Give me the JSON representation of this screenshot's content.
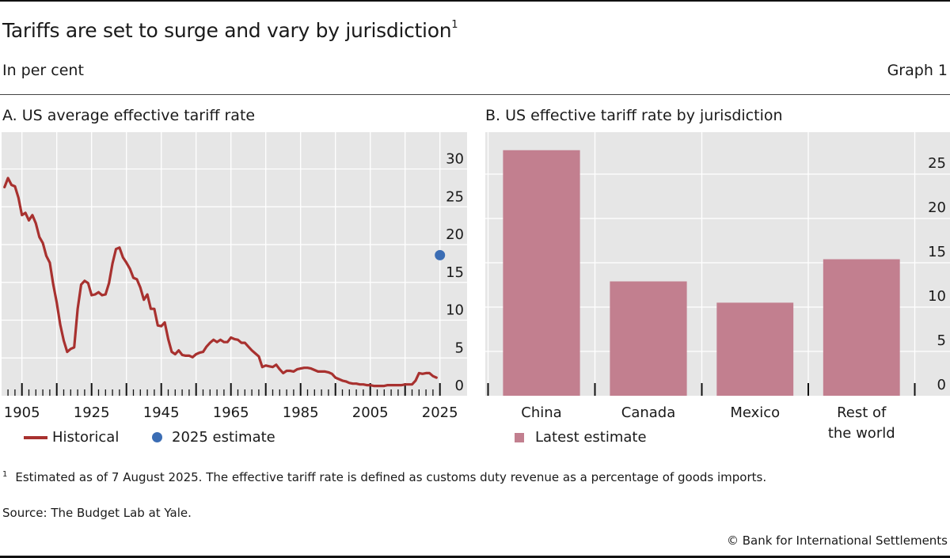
{
  "header": {
    "title": "Tariffs are set to surge and vary by jurisdiction",
    "title_footnote_marker": "1",
    "subtitle": "In per cent",
    "graph_number": "Graph 1"
  },
  "colors": {
    "historical_line": "#a8312f",
    "estimate_dot": "#3b6db4",
    "bar": "#c27f8f",
    "plot_background": "#e6e6e6",
    "gridline": "#ffffff"
  },
  "chart_data": [
    {
      "type": "line",
      "title": "A. US average effective tariff rate",
      "xlabel": "",
      "ylabel": "",
      "xlim": [
        1900,
        2027
      ],
      "ylim": [
        0,
        32
      ],
      "x_tick_labels": [
        "1905",
        "1925",
        "1945",
        "1965",
        "1985",
        "2005",
        "2025"
      ],
      "y_tick_labels": [
        "0",
        "5",
        "10",
        "15",
        "20",
        "25",
        "30"
      ],
      "y_ticks": [
        0,
        5,
        10,
        15,
        20,
        25,
        30
      ],
      "y_axis_position": "right",
      "grid": true,
      "legend_position": "bottom-left",
      "series": [
        {
          "name": "Historical",
          "kind": "line",
          "x": [
            1900,
            1901,
            1902,
            1903,
            1904,
            1905,
            1906,
            1907,
            1908,
            1909,
            1910,
            1911,
            1912,
            1913,
            1914,
            1915,
            1916,
            1917,
            1918,
            1919,
            1920,
            1921,
            1922,
            1923,
            1924,
            1925,
            1926,
            1927,
            1928,
            1929,
            1930,
            1931,
            1932,
            1933,
            1934,
            1935,
            1936,
            1937,
            1938,
            1939,
            1940,
            1941,
            1942,
            1943,
            1944,
            1945,
            1946,
            1947,
            1948,
            1949,
            1950,
            1951,
            1952,
            1953,
            1954,
            1955,
            1956,
            1957,
            1958,
            1959,
            1960,
            1961,
            1962,
            1963,
            1964,
            1965,
            1966,
            1967,
            1968,
            1969,
            1970,
            1971,
            1972,
            1973,
            1974,
            1975,
            1976,
            1977,
            1978,
            1979,
            1980,
            1981,
            1982,
            1983,
            1984,
            1985,
            1986,
            1987,
            1988,
            1989,
            1990,
            1991,
            1992,
            1993,
            1994,
            1995,
            1996,
            1997,
            1998,
            1999,
            2000,
            2001,
            2002,
            2003,
            2004,
            2005,
            2006,
            2007,
            2008,
            2009,
            2010,
            2011,
            2012,
            2013,
            2014,
            2015,
            2016,
            2017,
            2018,
            2019,
            2020,
            2021,
            2022,
            2023,
            2024
          ],
          "values": [
            27.6,
            28.8,
            27.9,
            27.7,
            26.2,
            23.9,
            24.2,
            23.2,
            23.9,
            22.8,
            21.0,
            20.2,
            18.5,
            17.6,
            14.7,
            12.3,
            9.4,
            7.3,
            5.8,
            6.2,
            6.4,
            11.5,
            14.7,
            15.2,
            14.9,
            13.3,
            13.4,
            13.7,
            13.3,
            13.4,
            14.9,
            17.5,
            19.4,
            19.6,
            18.3,
            17.6,
            16.8,
            15.6,
            15.4,
            14.3,
            12.7,
            13.4,
            11.5,
            11.5,
            9.3,
            9.2,
            9.7,
            7.5,
            5.8,
            5.5,
            6.0,
            5.4,
            5.3,
            5.3,
            5.1,
            5.5,
            5.7,
            5.8,
            6.5,
            7.0,
            7.4,
            7.1,
            7.4,
            7.1,
            7.1,
            7.7,
            7.5,
            7.4,
            7.0,
            7.0,
            6.5,
            6.0,
            5.6,
            5.2,
            3.8,
            4.0,
            3.9,
            3.8,
            4.1,
            3.5,
            3.0,
            3.3,
            3.3,
            3.2,
            3.5,
            3.6,
            3.7,
            3.7,
            3.6,
            3.4,
            3.2,
            3.2,
            3.2,
            3.1,
            2.9,
            2.4,
            2.2,
            2.0,
            1.9,
            1.7,
            1.6,
            1.6,
            1.5,
            1.5,
            1.4,
            1.4,
            1.3,
            1.3,
            1.3,
            1.3,
            1.4,
            1.4,
            1.4,
            1.4,
            1.4,
            1.5,
            1.5,
            1.5,
            2.0,
            3.0,
            2.9,
            3.0,
            3.0,
            2.6,
            2.4
          ]
        },
        {
          "name": "2025 estimate",
          "kind": "point",
          "x": [
            2025
          ],
          "values": [
            18.6
          ]
        }
      ]
    },
    {
      "type": "bar",
      "title": "B. US effective tariff rate by jurisdiction",
      "xlabel": "",
      "ylabel": "",
      "categories": [
        "China",
        "Canada",
        "Mexico",
        "Rest of the world"
      ],
      "category_label_lines": [
        [
          "China"
        ],
        [
          "Canada"
        ],
        [
          "Mexico"
        ],
        [
          "Rest of",
          "the world"
        ]
      ],
      "ylim": [
        0,
        29
      ],
      "y_tick_labels": [
        "0",
        "5",
        "10",
        "15",
        "20",
        "25"
      ],
      "y_ticks": [
        0,
        5,
        10,
        15,
        20,
        25
      ],
      "y_axis_position": "right",
      "grid": true,
      "legend_position": "bottom-left",
      "series": [
        {
          "name": "Latest estimate",
          "values": [
            27.7,
            12.9,
            10.5,
            15.4
          ]
        }
      ]
    }
  ],
  "legend_a": {
    "historical": "Historical",
    "estimate": "2025 estimate"
  },
  "legend_b": {
    "latest": "Latest estimate"
  },
  "footer": {
    "footnote_marker": "1",
    "footnote": "Estimated as of 7 August 2025. The effective tariff rate is defined as customs duty revenue as a percentage of goods imports.",
    "source": "Source: The Budget Lab at Yale.",
    "copyright": "© Bank for International Settlements"
  }
}
